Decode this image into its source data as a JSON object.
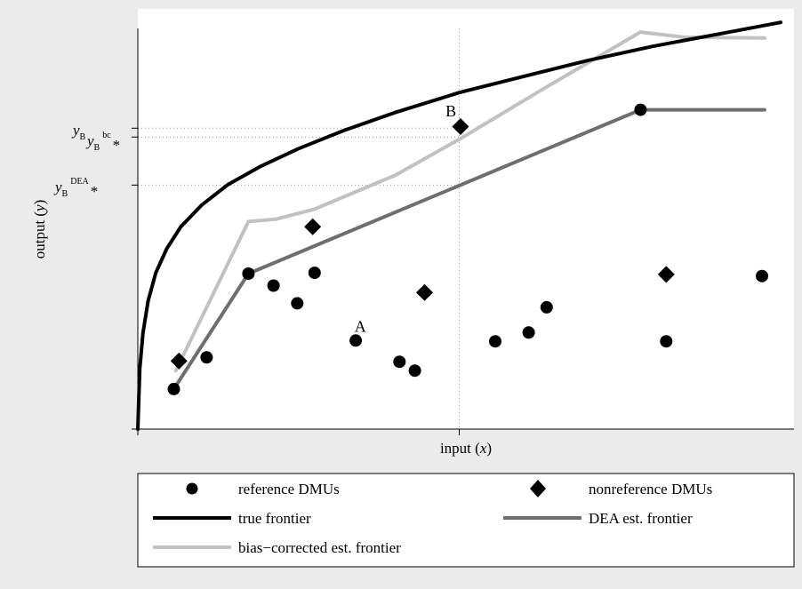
{
  "chart_data": {
    "type": "scatter",
    "xlabel": {
      "main": "input (",
      "var": "x",
      "close": ")"
    },
    "ylabel": {
      "main": "output (",
      "var": "y",
      "close": ")"
    },
    "xlim": [
      0,
      100
    ],
    "ylim": [
      0,
      100
    ],
    "grid": false,
    "legend_placement": "bottom",
    "tick_labels": {
      "y_B": {
        "base": "y",
        "sub": "B"
      },
      "y_B_bc": {
        "base": "y",
        "sub": "B",
        "sup": "bc",
        "star": "*"
      },
      "y_B_dea": {
        "base": "y",
        "sub": "B",
        "sup": "DEA",
        "star": "*"
      }
    },
    "guides": {
      "x_B": 50,
      "y_B": 75.1,
      "y_B_bc": 72.9,
      "y_B_dea": 60.9
    },
    "annotations": [
      {
        "text": "A",
        "x": 34.6,
        "y": 24.3
      },
      {
        "text": "B",
        "x": 48.7,
        "y": 78.1
      }
    ],
    "series": [
      {
        "name": "reference DMUs",
        "kind": "points",
        "marker": "circle",
        "color": "#000000",
        "points": [
          [
            5.6,
            10.0
          ],
          [
            10.7,
            17.9
          ],
          [
            17.2,
            38.8
          ],
          [
            21.1,
            35.8
          ],
          [
            24.8,
            31.4
          ],
          [
            27.5,
            39.0
          ],
          [
            33.9,
            22.1
          ],
          [
            40.7,
            16.8
          ],
          [
            43.1,
            14.6
          ],
          [
            55.6,
            21.9
          ],
          [
            60.8,
            24.1
          ],
          [
            63.6,
            30.4
          ],
          [
            78.2,
            79.7
          ],
          [
            82.2,
            21.9
          ],
          [
            97.1,
            38.2
          ]
        ]
      },
      {
        "name": "nonreference DMUs",
        "kind": "points",
        "marker": "diamond",
        "color": "#000000",
        "points": [
          [
            6.4,
            17.0
          ],
          [
            27.2,
            50.5
          ],
          [
            44.6,
            34.1
          ],
          [
            50.2,
            75.5
          ],
          [
            82.2,
            38.6
          ]
        ]
      },
      {
        "name": "true frontier",
        "kind": "line",
        "color": "#000000",
        "points": [
          [
            0,
            0
          ],
          [
            0.3,
            15
          ],
          [
            0.8,
            24
          ],
          [
            1.6,
            32
          ],
          [
            2.8,
            39
          ],
          [
            4.5,
            45
          ],
          [
            6.7,
            50.5
          ],
          [
            10,
            56
          ],
          [
            14,
            61
          ],
          [
            19,
            65.5
          ],
          [
            25,
            70
          ],
          [
            32,
            74.5
          ],
          [
            40,
            79
          ],
          [
            50,
            84
          ],
          [
            60,
            88
          ],
          [
            70,
            92
          ],
          [
            80,
            95.5
          ],
          [
            90,
            98.5
          ],
          [
            100,
            101.5
          ]
        ]
      },
      {
        "name": "DEA est. frontier",
        "kind": "line",
        "color": "#6e6e6e",
        "points": [
          [
            5.6,
            10.0
          ],
          [
            17.2,
            38.8
          ],
          [
            78.2,
            79.7
          ],
          [
            97.5,
            79.7
          ]
        ]
      },
      {
        "name": "bias−corrected est. frontier",
        "kind": "line",
        "color": "#c1c1c1",
        "points": [
          [
            5.9,
            14.6
          ],
          [
            17.2,
            51.8
          ],
          [
            21.5,
            52.4
          ],
          [
            27.5,
            54.9
          ],
          [
            40.1,
            63.4
          ],
          [
            50.2,
            72.5
          ],
          [
            63.6,
            85.4
          ],
          [
            78.2,
            99.1
          ],
          [
            85,
            97.8
          ],
          [
            97.5,
            97.6
          ]
        ]
      }
    ]
  }
}
